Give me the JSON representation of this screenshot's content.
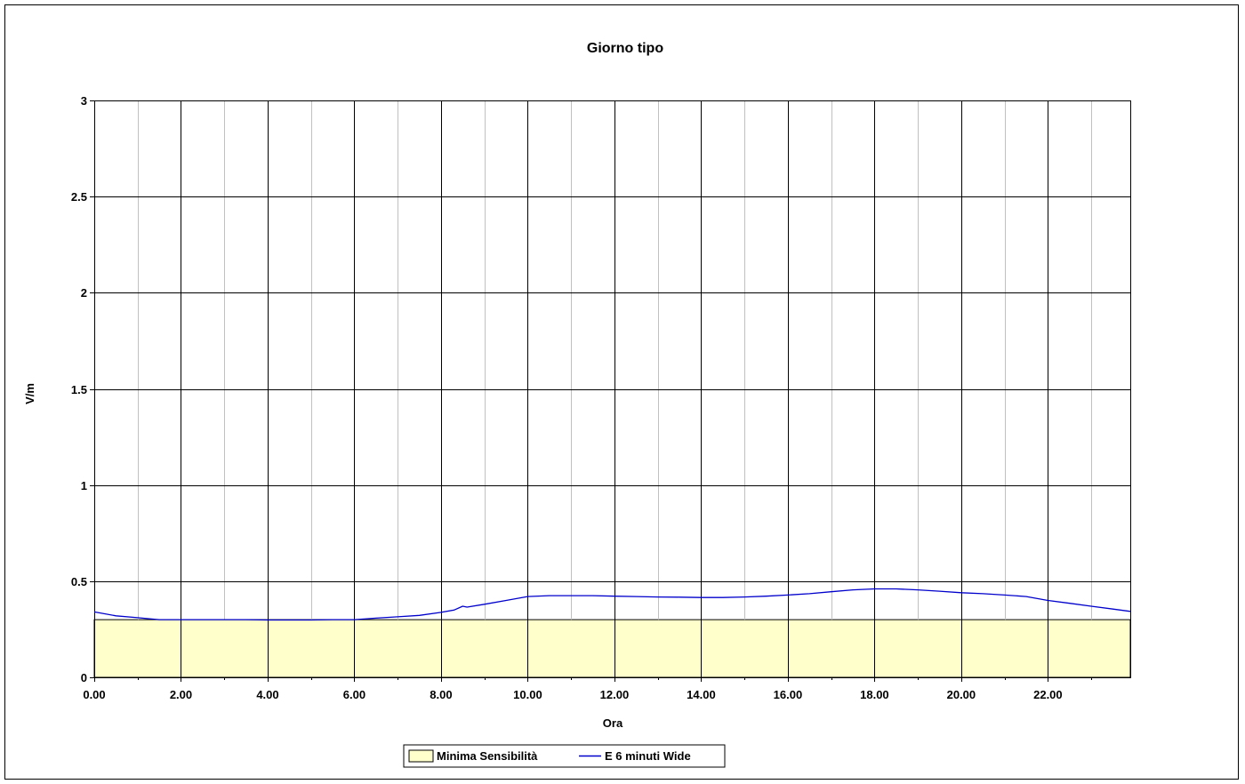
{
  "chart_data": {
    "type": "line",
    "title": "Giorno tipo",
    "xlabel": "Ora",
    "ylabel": "V/m",
    "xlim": [
      0,
      23.9
    ],
    "ylim": [
      0,
      3
    ],
    "x_ticks": [
      0,
      2,
      4,
      6,
      8,
      10,
      12,
      14,
      16,
      18,
      20,
      22
    ],
    "x_tick_labels": [
      "0.00",
      "2.00",
      "4.00",
      "6.00",
      "8.00",
      "10.00",
      "12.00",
      "14.00",
      "16.00",
      "18.00",
      "20.00",
      "22.00"
    ],
    "y_ticks": [
      0,
      0.5,
      1,
      1.5,
      2,
      2.5,
      3
    ],
    "y_tick_labels": [
      "0",
      "0.5",
      "1",
      "1.5",
      "2",
      "2.5",
      "3"
    ],
    "grid": true,
    "legend_position": "bottom",
    "series": [
      {
        "name": "Minima Sensibilità",
        "kind": "area",
        "color": "#ffffcc",
        "x": [
          0,
          23.9
        ],
        "values": [
          0.3,
          0.3
        ]
      },
      {
        "name": "E 6 minuti Wide",
        "kind": "line",
        "color": "#0000cc",
        "x": [
          0,
          0.5,
          1,
          1.5,
          2,
          2.5,
          3,
          3.5,
          4,
          4.5,
          5,
          5.5,
          6,
          6.5,
          7,
          7.5,
          8,
          8.3,
          8.5,
          8.6,
          9,
          9.5,
          10,
          10.5,
          11,
          11.5,
          12,
          12.5,
          13,
          13.5,
          14,
          14.5,
          15,
          15.5,
          16,
          16.5,
          17,
          17.5,
          18,
          18.5,
          19,
          19.5,
          20,
          20.5,
          21,
          21.5,
          22,
          22.5,
          23,
          23.5,
          23.9
        ],
        "values": [
          0.34,
          0.32,
          0.31,
          0.3,
          0.3,
          0.3,
          0.3,
          0.3,
          0.298,
          0.298,
          0.298,
          0.3,
          0.3,
          0.308,
          0.315,
          0.322,
          0.338,
          0.35,
          0.37,
          0.365,
          0.38,
          0.4,
          0.42,
          0.425,
          0.425,
          0.425,
          0.422,
          0.42,
          0.418,
          0.417,
          0.415,
          0.415,
          0.418,
          0.422,
          0.428,
          0.435,
          0.445,
          0.455,
          0.46,
          0.46,
          0.455,
          0.448,
          0.44,
          0.435,
          0.428,
          0.42,
          0.4,
          0.385,
          0.37,
          0.355,
          0.343
        ]
      }
    ]
  }
}
